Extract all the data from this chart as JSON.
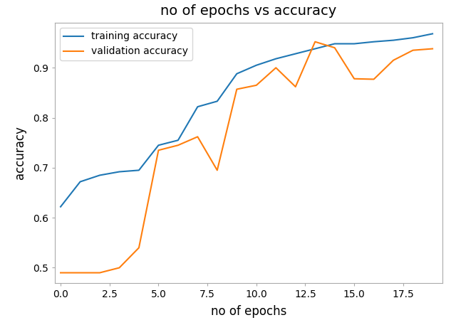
{
  "title": "no of epochs vs accuracy",
  "xlabel": "no of epochs",
  "ylabel": "accuracy",
  "train_x": [
    0,
    1,
    2,
    3,
    4,
    5,
    6,
    7,
    8,
    9,
    10,
    11,
    12,
    13,
    14,
    15,
    16,
    17,
    18,
    19
  ],
  "train_y": [
    0.622,
    0.672,
    0.685,
    0.692,
    0.695,
    0.745,
    0.755,
    0.822,
    0.833,
    0.888,
    0.905,
    0.918,
    0.928,
    0.938,
    0.948,
    0.948,
    0.952,
    0.955,
    0.96,
    0.968
  ],
  "val_x": [
    0,
    1,
    2,
    3,
    4,
    5,
    6,
    7,
    8,
    9,
    10,
    11,
    12,
    13,
    14,
    15,
    16,
    17,
    18,
    19
  ],
  "val_y": [
    0.49,
    0.49,
    0.49,
    0.5,
    0.54,
    0.735,
    0.745,
    0.762,
    0.695,
    0.857,
    0.865,
    0.9,
    0.862,
    0.952,
    0.94,
    0.878,
    0.877,
    0.915,
    0.935,
    0.938
  ],
  "train_color": "#1f77b4",
  "val_color": "#ff7f0e",
  "train_label": "training accuracy",
  "val_label": "validation accuracy",
  "ylim": [
    0.47,
    0.99
  ],
  "xlim": [
    -0.3,
    19.5
  ],
  "xticks": [
    0.0,
    2.5,
    5.0,
    7.5,
    10.0,
    12.5,
    15.0,
    17.5
  ],
  "xtick_labels": [
    "0.0",
    "2.5",
    "5.0",
    "7.5",
    "10.0",
    "12.5",
    "15.0",
    "17.5"
  ],
  "yticks": [
    0.5,
    0.6,
    0.7,
    0.8,
    0.9
  ],
  "legend_loc": "upper left",
  "title_fontsize": 14,
  "label_fontsize": 12,
  "tick_fontsize": 10,
  "legend_fontsize": 10,
  "linewidth": 1.5,
  "facecolor": "#ffffff",
  "spine_color": "#aaaaaa"
}
